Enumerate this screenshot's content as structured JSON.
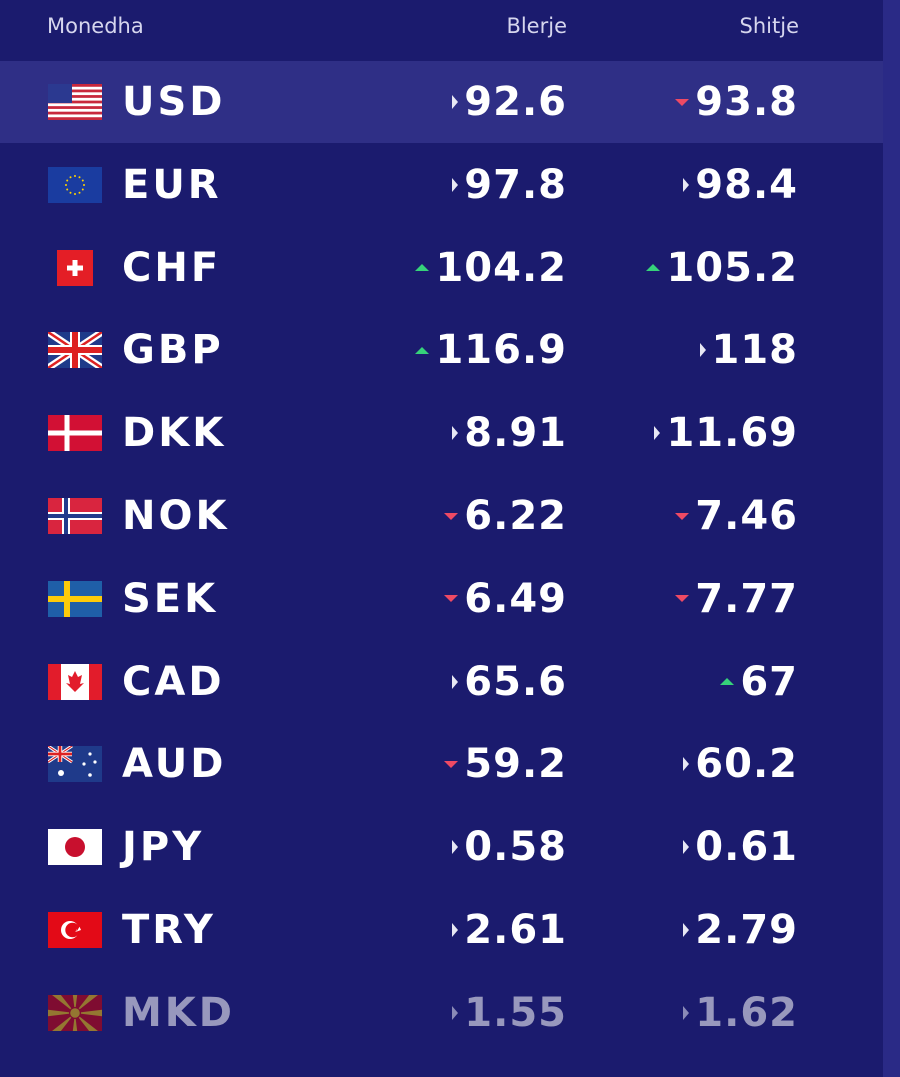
{
  "header": {
    "currency": "Monedha",
    "buy": "Blerje",
    "sell": "Shitje"
  },
  "table": {
    "rows": [
      {
        "code": "USD",
        "buy": "92.6",
        "buy_trend": "flat",
        "sell": "93.8",
        "sell_trend": "down",
        "highlighted": true
      },
      {
        "code": "EUR",
        "buy": "97.8",
        "buy_trend": "flat",
        "sell": "98.4",
        "sell_trend": "flat"
      },
      {
        "code": "CHF",
        "buy": "104.2",
        "buy_trend": "up",
        "sell": "105.2",
        "sell_trend": "up"
      },
      {
        "code": "GBP",
        "buy": "116.9",
        "buy_trend": "up",
        "sell": "118",
        "sell_trend": "flat"
      },
      {
        "code": "DKK",
        "buy": "8.91",
        "buy_trend": "flat",
        "sell": "11.69",
        "sell_trend": "flat"
      },
      {
        "code": "NOK",
        "buy": "6.22",
        "buy_trend": "down",
        "sell": "7.46",
        "sell_trend": "down"
      },
      {
        "code": "SEK",
        "buy": "6.49",
        "buy_trend": "down",
        "sell": "7.77",
        "sell_trend": "down"
      },
      {
        "code": "CAD",
        "buy": "65.6",
        "buy_trend": "flat",
        "sell": "67",
        "sell_trend": "up"
      },
      {
        "code": "AUD",
        "buy": "59.2",
        "buy_trend": "down",
        "sell": "60.2",
        "sell_trend": "flat"
      },
      {
        "code": "JPY",
        "buy": "0.58",
        "buy_trend": "flat",
        "sell": "0.61",
        "sell_trend": "flat"
      },
      {
        "code": "TRY",
        "buy": "2.61",
        "buy_trend": "flat",
        "sell": "2.79",
        "sell_trend": "flat"
      },
      {
        "code": "MKD",
        "buy": "1.55",
        "buy_trend": "flat",
        "sell": "1.62",
        "sell_trend": "flat",
        "faded": true
      }
    ]
  }
}
